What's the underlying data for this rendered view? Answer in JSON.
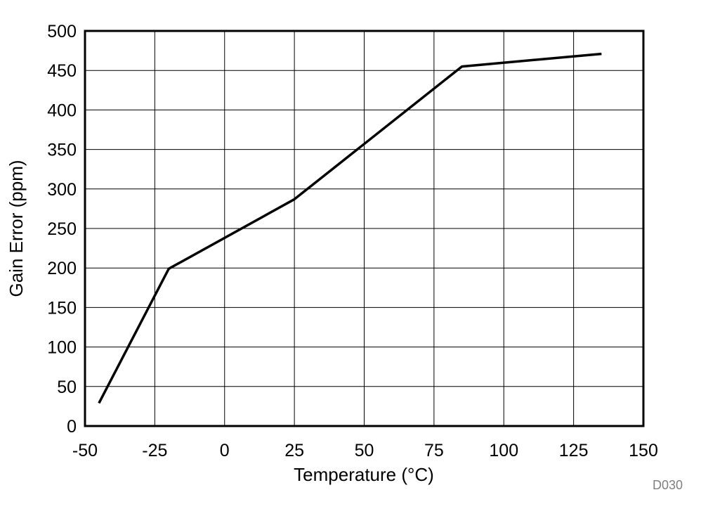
{
  "chart_data": {
    "type": "line",
    "title": "",
    "xlabel": "Temperature (°C)",
    "ylabel": "Gain Error (ppm)",
    "xlim": [
      -50,
      150
    ],
    "ylim": [
      0,
      500
    ],
    "x_ticks": [
      "-50",
      "-25",
      "0",
      "25",
      "50",
      "75",
      "100",
      "125",
      "150"
    ],
    "y_ticks": [
      "0",
      "50",
      "100",
      "150",
      "200",
      "250",
      "300",
      "350",
      "400",
      "450",
      "500"
    ],
    "grid": true,
    "legend": "none",
    "line_color": "#000000",
    "series": [
      {
        "x": [
          -45,
          -20,
          25,
          85,
          135
        ],
        "y": [
          29,
          199,
          287,
          455,
          471
        ]
      }
    ]
  },
  "figure_id": "D030"
}
